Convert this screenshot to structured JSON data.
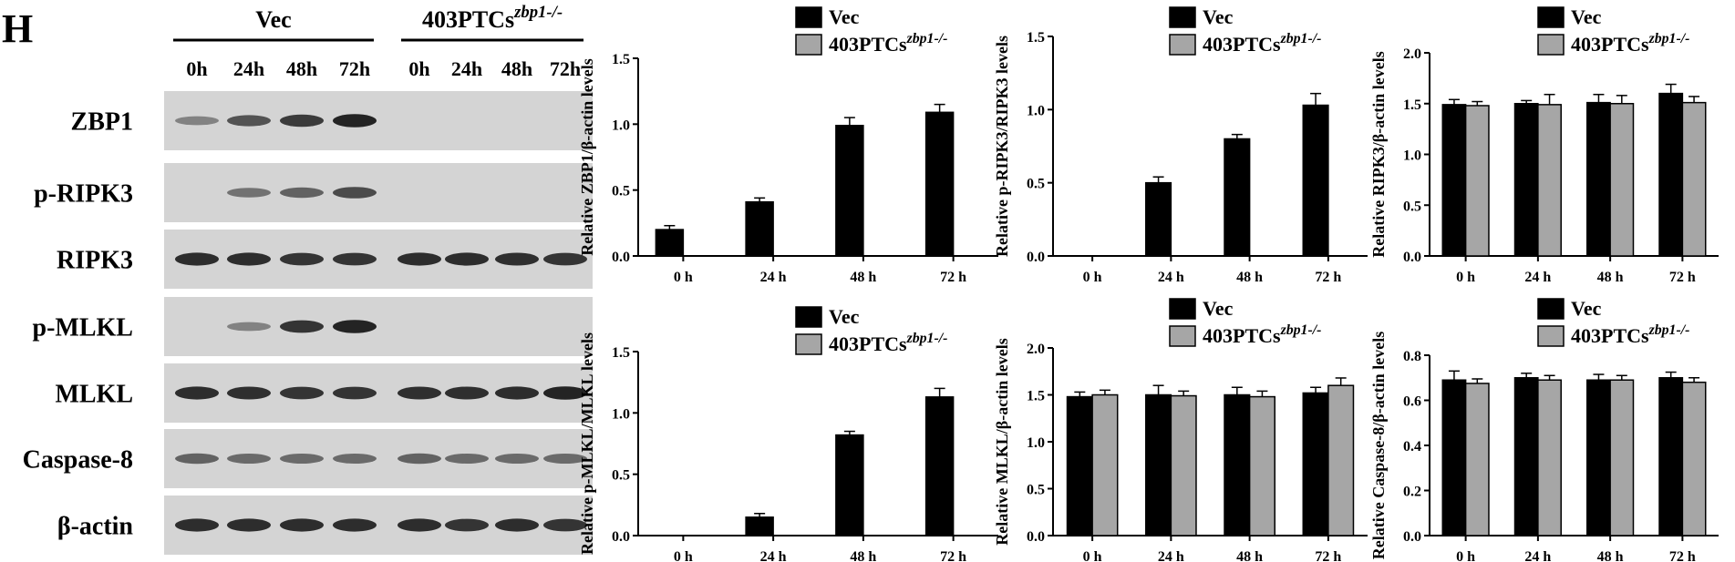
{
  "panel_label": "H",
  "blot": {
    "groups": [
      {
        "name": "Vec",
        "sup": ""
      },
      {
        "name": "403PTCs",
        "sup": "zbp1-/-"
      }
    ],
    "timepoints": [
      "0h",
      "24h",
      "48h",
      "72h",
      "0h",
      "24h",
      "48h",
      "72h"
    ],
    "rows": [
      {
        "label": "ZBP1",
        "intensities": [
          0.35,
          0.65,
          0.8,
          0.95,
          0,
          0,
          0,
          0
        ]
      },
      {
        "label": "p-RIPK3",
        "intensities": [
          0,
          0.45,
          0.55,
          0.7,
          0,
          0,
          0,
          0
        ]
      },
      {
        "label": "RIPK3",
        "intensities": [
          0.9,
          0.9,
          0.85,
          0.85,
          0.9,
          0.9,
          0.88,
          0.85
        ]
      },
      {
        "label": "p-MLKL",
        "intensities": [
          0,
          0.35,
          0.85,
          0.95,
          0,
          0,
          0,
          0
        ]
      },
      {
        "label": "MLKL",
        "intensities": [
          0.9,
          0.88,
          0.85,
          0.85,
          0.88,
          0.88,
          0.9,
          0.95
        ]
      },
      {
        "label": "Caspase-8",
        "intensities": [
          0.55,
          0.5,
          0.5,
          0.5,
          0.55,
          0.5,
          0.5,
          0.5
        ]
      },
      {
        "label": "β-actin",
        "intensities": [
          0.9,
          0.9,
          0.9,
          0.9,
          0.9,
          0.85,
          0.9,
          0.85
        ]
      }
    ]
  },
  "colors": {
    "vec": "#000000",
    "ko": "#a6a6a6",
    "blot_bg": "#d4d4d4",
    "band": "#1c1c1c"
  },
  "chart_data": [
    {
      "type": "bar",
      "ylabel": "Relative ZBP1/β-actin levels",
      "categories": [
        "0 h",
        "24 h",
        "48 h",
        "72 h"
      ],
      "ylim": [
        0,
        1.5
      ],
      "yticks": [
        "0.0",
        "0.5",
        "1.0",
        "1.5"
      ],
      "legend": [
        {
          "name": "Vec",
          "sup": ""
        },
        {
          "name": "403PTCs",
          "sup": "zbp1-/-"
        }
      ],
      "series": [
        {
          "name": "Vec",
          "values": [
            0.2,
            0.41,
            0.99,
            1.09
          ],
          "errors": [
            0.03,
            0.03,
            0.06,
            0.06
          ]
        },
        {
          "name": "403PTCs zbp1-/-",
          "values": [
            0,
            0,
            0,
            0
          ],
          "errors": [
            0,
            0,
            0,
            0
          ]
        }
      ]
    },
    {
      "type": "bar",
      "ylabel": "Relative p-RIPK3/RIPK3 levels",
      "categories": [
        "0 h",
        "24 h",
        "48 h",
        "72 h"
      ],
      "ylim": [
        0,
        1.5
      ],
      "yticks": [
        "0.0",
        "0.5",
        "1.0",
        "1.5"
      ],
      "legend": [
        {
          "name": "Vec",
          "sup": ""
        },
        {
          "name": "403PTCs",
          "sup": "zbp1-/-"
        }
      ],
      "series": [
        {
          "name": "Vec",
          "values": [
            0,
            0.5,
            0.8,
            1.03
          ],
          "errors": [
            0,
            0.04,
            0.03,
            0.08
          ]
        },
        {
          "name": "403PTCs zbp1-/-",
          "values": [
            0,
            0,
            0,
            0
          ],
          "errors": [
            0,
            0,
            0,
            0
          ]
        }
      ]
    },
    {
      "type": "bar",
      "ylabel": "Relative RIPK3/β-actin levels",
      "categories": [
        "0 h",
        "24 h",
        "48 h",
        "72 h"
      ],
      "ylim": [
        0,
        2.0
      ],
      "yticks": [
        "0.0",
        "0.5",
        "1.0",
        "1.5",
        "2.0"
      ],
      "legend": [
        {
          "name": "Vec",
          "sup": ""
        },
        {
          "name": "403PTCs",
          "sup": "zbp1-/-"
        }
      ],
      "series": [
        {
          "name": "Vec",
          "values": [
            1.49,
            1.5,
            1.51,
            1.6
          ],
          "errors": [
            0.05,
            0.03,
            0.08,
            0.09
          ]
        },
        {
          "name": "403PTCs zbp1-/-",
          "values": [
            1.48,
            1.49,
            1.5,
            1.51
          ],
          "errors": [
            0.04,
            0.1,
            0.08,
            0.06
          ]
        }
      ]
    },
    {
      "type": "bar",
      "ylabel": "Relative p-MLKL/MLKL levels",
      "categories": [
        "0 h",
        "24 h",
        "48 h",
        "72 h"
      ],
      "ylim": [
        0,
        1.5
      ],
      "yticks": [
        "0.0",
        "0.5",
        "1.0",
        "1.5"
      ],
      "legend": [
        {
          "name": "Vec",
          "sup": ""
        },
        {
          "name": "403PTCs",
          "sup": "zbp1-/-"
        }
      ],
      "series": [
        {
          "name": "Vec",
          "values": [
            0,
            0.15,
            0.82,
            1.13
          ],
          "errors": [
            0,
            0.03,
            0.03,
            0.07
          ]
        },
        {
          "name": "403PTCs zbp1-/-",
          "values": [
            0,
            0,
            0,
            0
          ],
          "errors": [
            0,
            0,
            0,
            0
          ]
        }
      ]
    },
    {
      "type": "bar",
      "ylabel": "Relative MLKL/β-actin levels",
      "categories": [
        "0 h",
        "24 h",
        "48 h",
        "72 h"
      ],
      "ylim": [
        0,
        2.0
      ],
      "yticks": [
        "0.0",
        "0.5",
        "1.0",
        "1.5",
        "2.0"
      ],
      "legend": [
        {
          "name": "Vec",
          "sup": ""
        },
        {
          "name": "403PTCs",
          "sup": "zbp1-/-"
        }
      ],
      "series": [
        {
          "name": "Vec",
          "values": [
            1.48,
            1.5,
            1.5,
            1.52
          ],
          "errors": [
            0.05,
            0.1,
            0.08,
            0.06
          ]
        },
        {
          "name": "403PTCs zbp1-/-",
          "values": [
            1.5,
            1.49,
            1.48,
            1.6
          ],
          "errors": [
            0.05,
            0.05,
            0.06,
            0.08
          ]
        }
      ]
    },
    {
      "type": "bar",
      "ylabel": "Relative Caspase-8/β-actin levels",
      "categories": [
        "0 h",
        "24 h",
        "48 h",
        "72 h"
      ],
      "ylim": [
        0,
        0.8
      ],
      "yticks": [
        "0.0",
        "0.2",
        "0.4",
        "0.6",
        "0.8"
      ],
      "legend": [
        {
          "name": "Vec",
          "sup": ""
        },
        {
          "name": "403PTCs",
          "sup": "zbp1-/-"
        }
      ],
      "series": [
        {
          "name": "Vec",
          "values": [
            0.69,
            0.7,
            0.69,
            0.7
          ],
          "errors": [
            0.04,
            0.02,
            0.025,
            0.025
          ]
        },
        {
          "name": "403PTCs zbp1-/-",
          "values": [
            0.675,
            0.69,
            0.69,
            0.68
          ],
          "errors": [
            0.02,
            0.02,
            0.02,
            0.02
          ]
        }
      ]
    }
  ]
}
